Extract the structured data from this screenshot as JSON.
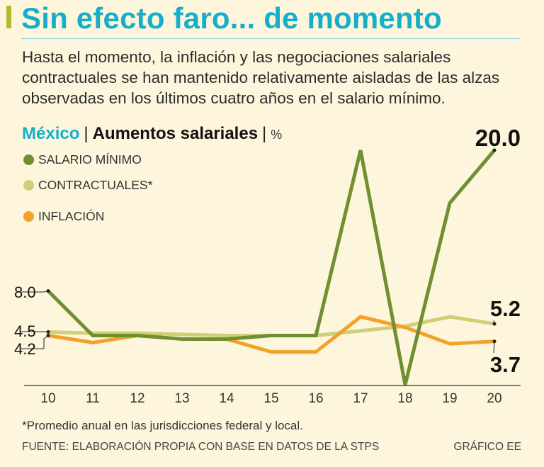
{
  "header": {
    "title": "Sin efecto faro... de momento",
    "subtitle": "Hasta el momento, la inflación y las negociaciones salariales contractuales se han mantenido relativamente aisladas de las alzas observadas en los últimos cuatro años en el salario mínimo."
  },
  "chart_heading": {
    "country": "México",
    "separator": "|",
    "topic": "Aumentos salariales",
    "unit_separator": "|",
    "unit": "%"
  },
  "colors": {
    "background": "#fdf6dc",
    "title": "#17aec9",
    "accent": "#b7b92d",
    "salario_minimo": "#6f8f31",
    "contractuales": "#cfcf78",
    "inflacion": "#f2a22a"
  },
  "chart_data": {
    "type": "line",
    "x": [
      "10",
      "11",
      "12",
      "13",
      "14",
      "15",
      "16",
      "17",
      "18",
      "19",
      "20"
    ],
    "ylim": [
      0,
      20.5
    ],
    "grid": false,
    "legend_position": "top-left",
    "series": [
      {
        "name": "SALARIO MÍNIMO",
        "color": "#6f8f31",
        "values": [
          8.0,
          4.2,
          4.2,
          3.9,
          3.9,
          4.2,
          4.2,
          20.0,
          0,
          15.5,
          20.0
        ]
      },
      {
        "name": "CONTRACTUALES*",
        "color": "#cfcf78",
        "values": [
          4.5,
          4.4,
          4.4,
          4.3,
          4.2,
          4.2,
          4.2,
          4.6,
          5.0,
          5.8,
          5.2
        ]
      },
      {
        "name": "INFLACIÓN",
        "color": "#f2a22a",
        "values": [
          4.2,
          3.6,
          4.2,
          3.9,
          3.9,
          2.8,
          2.8,
          5.8,
          4.9,
          3.5,
          3.7
        ]
      }
    ],
    "annotations": [
      {
        "label": "8.0",
        "series": 0,
        "index": 0
      },
      {
        "label": "4.5",
        "series": 1,
        "index": 0
      },
      {
        "label": "4.2",
        "series": 2,
        "index": 0
      },
      {
        "label": "20.0",
        "series": 0,
        "index": 10
      },
      {
        "label": "5.2",
        "series": 1,
        "index": 10
      },
      {
        "label": "3.7",
        "series": 2,
        "index": 10
      }
    ]
  },
  "footer": {
    "footnote": "*Promedio anual en las jurisdicciones federal y local.",
    "source": "FUENTE: ELABORACIÓN PROPIA CON BASE EN DATOS DE LA STPS",
    "credit": "GRÁFICO EE"
  }
}
